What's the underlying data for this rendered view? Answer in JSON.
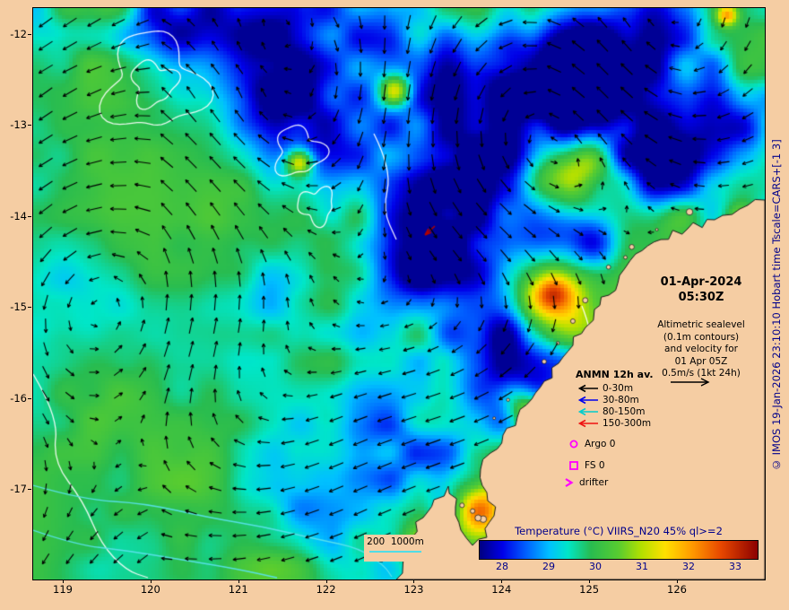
{
  "colors": {
    "background": "#f5cda3",
    "land": "#f5cda3",
    "coast_line": "#1a1a1a",
    "navy_text": "#00008b",
    "magenta": "#ff00ff",
    "bathy_cyan": "#50dce6",
    "contour_white": "#ffffff",
    "arrow_black": "#000000"
  },
  "axes": {
    "x_ticks": [
      "119",
      "120",
      "121",
      "122",
      "123",
      "124",
      "125",
      "126"
    ],
    "y_ticks": [
      "-12",
      "-13",
      "-14",
      "-15",
      "-16",
      "-17"
    ]
  },
  "timestamp": {
    "date": "01-Apr-2024",
    "time": "05:30Z"
  },
  "note": {
    "lines": [
      "Altimetric sealevel",
      "(0.1m contours)",
      "and velocity for",
      "01 Apr 05Z",
      "0.5m/s (1kt 24h)"
    ]
  },
  "anmn_legend": {
    "title": "ANMN 12h av.",
    "items": [
      {
        "label": "0-30m",
        "color": "#000000"
      },
      {
        "label": "30-80m",
        "color": "#0000ee"
      },
      {
        "label": "80-150m",
        "color": "#00cccc"
      },
      {
        "label": "150-300m",
        "color": "#ee1111"
      }
    ]
  },
  "markers": {
    "argo": "Argo 0",
    "fs": "FS 0",
    "drifter": "drifter"
  },
  "bathy_legend": {
    "label": "200  1000m"
  },
  "colorbar": {
    "title": "Temperature (°C) VIIRS_N20 45% ql>=2",
    "ticks": [
      "28",
      "29",
      "30",
      "31",
      "32",
      "33"
    ],
    "range": [
      27.5,
      33.5
    ],
    "stops": [
      [
        27.5,
        "#000080"
      ],
      [
        28.0,
        "#0000e8"
      ],
      [
        28.5,
        "#0060ff"
      ],
      [
        29.0,
        "#00c0ff"
      ],
      [
        29.4,
        "#00e6c8"
      ],
      [
        29.9,
        "#28bc50"
      ],
      [
        30.5,
        "#58cc30"
      ],
      [
        31.0,
        "#b4e000"
      ],
      [
        31.5,
        "#ffe000"
      ],
      [
        32.1,
        "#ff9800"
      ],
      [
        32.7,
        "#e84800"
      ],
      [
        33.5,
        "#8c0000"
      ]
    ]
  },
  "credit": "© IMOS 19-Jan-2026 23:10:10 Hobart time Tscale=CARS+[-1 3]"
}
